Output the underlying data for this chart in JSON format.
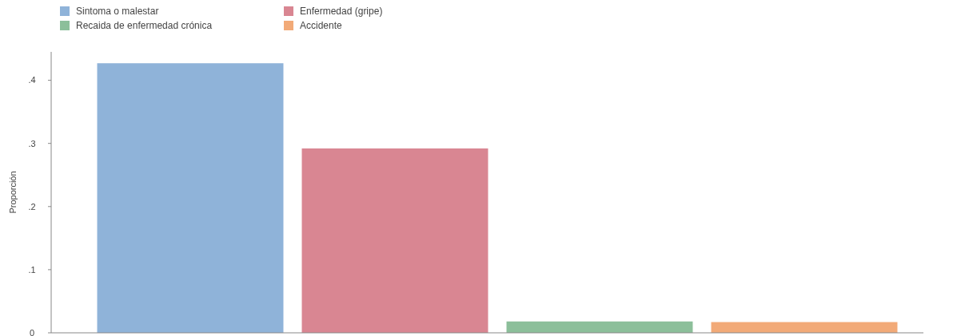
{
  "chart_data": {
    "type": "bar",
    "ylabel": "Proporción",
    "categories": [
      null,
      null,
      null,
      null
    ],
    "series": [
      {
        "name": "Sintoma o malestar",
        "color": "#8fb3d9",
        "values": [
          0.427,
          null,
          null,
          null
        ]
      },
      {
        "name": "Enfermedad (gripe)",
        "color": "#d98692",
        "values": [
          null,
          0.292,
          null,
          null
        ]
      },
      {
        "name": "Recaida de enfermedad crónica",
        "color": "#8cbf9a",
        "values": [
          null,
          null,
          0.018,
          null
        ]
      },
      {
        "name": "Accidente",
        "color": "#f2aa78",
        "values": [
          null,
          null,
          null,
          0.017
        ]
      }
    ],
    "ylim": [
      0,
      0.445
    ],
    "yticks": [
      0,
      {
        "value": 0.1,
        "label": ".1"
      },
      {
        "value": 0.2,
        "label": ".2"
      },
      {
        "value": 0.3,
        "label": ".3"
      },
      {
        "value": 0.4,
        "label": ".4"
      }
    ],
    "grid": false,
    "legend": "top left"
  }
}
